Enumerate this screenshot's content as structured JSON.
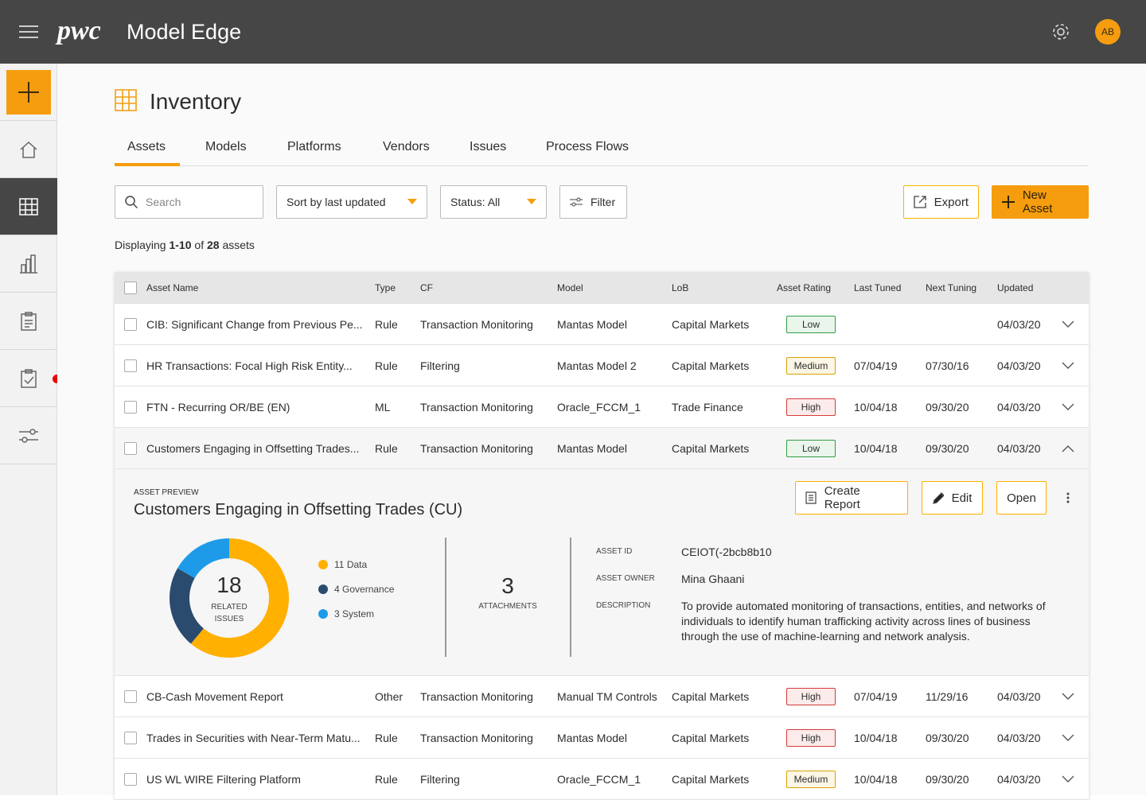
{
  "header": {
    "brand": "pwc",
    "product": "Model Edge",
    "avatar": "AB"
  },
  "page": {
    "title": "Inventory",
    "tabs": [
      "Assets",
      "Models",
      "Platforms",
      "Vendors",
      "Issues",
      "Process Flows"
    ],
    "active_tab": 0
  },
  "toolbar": {
    "search_placeholder": "Search",
    "sort": "Sort by last updated",
    "status": "Status: All",
    "filter": "Filter",
    "export": "Export",
    "new_asset": "New Asset"
  },
  "summary": {
    "prefix": "Displaying",
    "range": "1-10",
    "of": "of",
    "total": 28,
    "suffix": "assets"
  },
  "table": {
    "columns": [
      "Asset Name",
      "Type",
      "CF",
      "Model",
      "LoB",
      "Asset Rating",
      "Last Tuned",
      "Next Tuning",
      "Updated"
    ],
    "rows": [
      {
        "cells": [
          "CIB: Significant Change from Previous Pe...",
          "Rule",
          "Transaction Monitoring",
          "Mantas Model",
          "Capital Markets",
          "Low",
          null,
          null,
          "04/03/20"
        ],
        "rating_color": "#2f9e44"
      },
      {
        "cells": [
          "HR Transactions: Focal High Risk Entity...",
          "Rule",
          "Filtering",
          "Mantas Model 2",
          "Capital Markets",
          "Medium",
          "07/04/19",
          "07/30/16",
          "04/03/20"
        ],
        "rating_color": "#d9a300"
      },
      {
        "cells": [
          "FTN - Recurring OR/BE (EN)",
          "ML",
          "Transaction Monitoring",
          "Oracle_FCCM_1",
          "Trade Finance",
          "High",
          "10/04/18",
          "09/30/20",
          "04/03/20"
        ],
        "rating_color": "#d63a3a"
      },
      {
        "cells": [
          "Customers Engaging in Offsetting Trades...",
          "Rule",
          "Transaction Monitoring",
          "Mantas Model",
          "Capital Markets",
          "Low",
          "10/04/18",
          "09/30/20",
          "04/03/20"
        ],
        "rating_color": "#2f9e44",
        "expanded": true
      },
      {
        "cells": [
          "CB-Cash Movement Report",
          "Other",
          "Transaction Monitoring",
          "Manual TM Controls",
          "Capital Markets",
          "High",
          "07/04/19",
          "11/29/16",
          "04/03/20"
        ],
        "rating_color": "#d63a3a"
      },
      {
        "cells": [
          "Trades in Securities with Near-Term Matu...",
          "Rule",
          "Transaction Monitoring",
          "Mantas Model",
          "Capital Markets",
          "High",
          "10/04/18",
          "09/30/20",
          "04/03/20"
        ],
        "rating_color": "#d63a3a"
      },
      {
        "cells": [
          "US WL WIRE Filtering Platform",
          "Rule",
          "Filtering",
          "Oracle_FCCM_1",
          "Capital Markets",
          "Medium",
          "10/04/18",
          "09/30/20",
          "04/03/20"
        ],
        "rating_color": "#d9a300"
      }
    ]
  },
  "preview": {
    "eyebrow": "ASSET PREVIEW",
    "title": "Customers Engaging in Offsetting Trades (CU)",
    "buttons": [
      "Create Report",
      "Edit",
      "Open"
    ],
    "issues": {
      "total": 18,
      "label": "RELATED ISSUES",
      "items": [
        {
          "value": 11,
          "label": "Data",
          "color": "#ffb000"
        },
        {
          "value": 4,
          "label": "Governance",
          "color": "#2a4b6e"
        },
        {
          "value": 3,
          "label": "System",
          "color": "#1e9be8"
        }
      ]
    },
    "attachments": {
      "count": 3,
      "label": "ATTACHMENTS"
    },
    "details": [
      {
        "label": "ASSET ID",
        "value": "CEIOT(-2bcb8b10"
      },
      {
        "label": "ASSET OWNER",
        "value": "Mina Ghaani"
      },
      {
        "label": "DESCRIPTION",
        "value": "To provide automated monitoring of transactions, entities, and networks of individuals to identify human trafficking activity across lines of business through the use of machine-learning and network analysis."
      }
    ]
  }
}
